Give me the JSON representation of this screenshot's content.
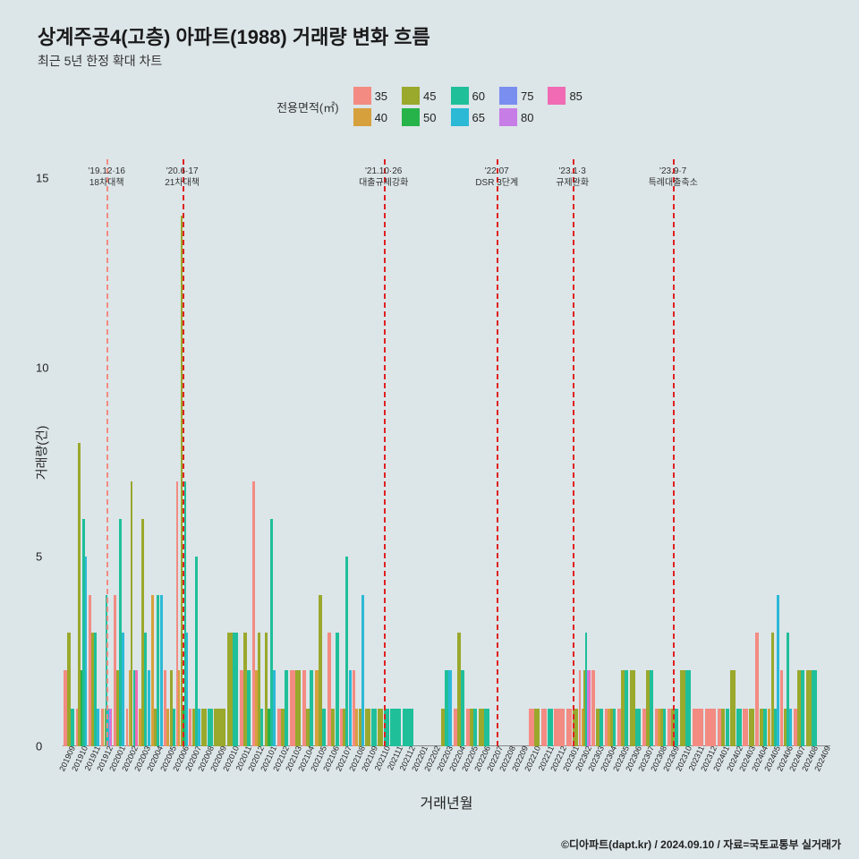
{
  "title": "상계주공4(고층) 아파트(1988) 거래량 변화 흐름",
  "subtitle": "최근 5년 한정 확대 차트",
  "legend_title": "전용면적(㎡)",
  "footer": "©디아파트(dapt.kr) / 2024.09.10 / 자료=국토교통부 실거래가",
  "y_label": "거래량(건)",
  "x_label": "거래년월",
  "y_ticks": [
    0,
    5,
    10,
    15
  ],
  "ylim": [
    0,
    15.5
  ],
  "background_color": "#dce5e8",
  "plot_bg": "#dce5e8",
  "series": [
    {
      "key": "35",
      "label": "35",
      "color": "#f38b82"
    },
    {
      "key": "40",
      "label": "40",
      "color": "#d6a03c"
    },
    {
      "key": "45",
      "label": "45",
      "color": "#9aa82c"
    },
    {
      "key": "50",
      "label": "50",
      "color": "#26b34a"
    },
    {
      "key": "60",
      "label": "60",
      "color": "#1fbf9a"
    },
    {
      "key": "65",
      "label": "65",
      "color": "#2bb9d6"
    },
    {
      "key": "75",
      "label": "75",
      "color": "#7a8ef0"
    },
    {
      "key": "80",
      "label": "80",
      "color": "#c77de6"
    },
    {
      "key": "85",
      "label": "85",
      "color": "#f06bb3"
    }
  ],
  "legend_layout_order": [
    "35",
    "45",
    "60",
    "75",
    "85",
    "40",
    "50",
    "65",
    "80"
  ],
  "months": [
    "201909",
    "201910",
    "201911",
    "201912",
    "202001",
    "202002",
    "202003",
    "202004",
    "202005",
    "202006",
    "202007",
    "202008",
    "202009",
    "202010",
    "202011",
    "202012",
    "202101",
    "202102",
    "202103",
    "202104",
    "202105",
    "202106",
    "202107",
    "202108",
    "202109",
    "202110",
    "202111",
    "202112",
    "202201",
    "202202",
    "202203",
    "202204",
    "202205",
    "202206",
    "202207",
    "202208",
    "202209",
    "202210",
    "202211",
    "202212",
    "202301",
    "202302",
    "202303",
    "202304",
    "202305",
    "202306",
    "202307",
    "202308",
    "202309",
    "202310",
    "202311",
    "202312",
    "202401",
    "202402",
    "202403",
    "202404",
    "202405",
    "202406",
    "202407",
    "202408",
    "202409"
  ],
  "events": [
    {
      "month": "201912",
      "label1": "'19.12·16",
      "label2": "18차대책",
      "color": "#f38b82"
    },
    {
      "month": "202006",
      "label1": "'20.6·17",
      "label2": "21차대책",
      "color": "#e02020"
    },
    {
      "month": "202110",
      "label1": "'21.10·26",
      "label2": "대출규제강화",
      "color": "#e02020"
    },
    {
      "month": "202207",
      "label1": "'22.07",
      "label2": "DSR 3단계",
      "color": "#e02020"
    },
    {
      "month": "202301",
      "label1": "'23.1·3",
      "label2": "규제완화",
      "color": "#e02020"
    },
    {
      "month": "202309",
      "label1": "'23.9·7",
      "label2": "특례대출축소",
      "color": "#e02020"
    }
  ],
  "data": {
    "201909": {
      "35": 2,
      "45": 3,
      "60": 1
    },
    "201910": {
      "35": 1,
      "45": 8,
      "50": 2,
      "60": 6,
      "65": 5
    },
    "201911": {
      "35": 4,
      "45": 3,
      "60": 3,
      "65": 1
    },
    "201912": {
      "35": 1,
      "40": 1,
      "45": 1,
      "60": 4,
      "65": 1,
      "80": 1,
      "85": 1
    },
    "202001": {
      "35": 4,
      "45": 2,
      "60": 6,
      "65": 3
    },
    "202002": {
      "35": 1,
      "40": 2,
      "45": 7,
      "60": 2,
      "85": 2
    },
    "202003": {
      "40": 1,
      "45": 6,
      "60": 3,
      "65": 2
    },
    "202004": {
      "40": 4,
      "45": 1,
      "60": 4,
      "65": 4
    },
    "202005": {
      "35": 2,
      "40": 1,
      "45": 2,
      "60": 1
    },
    "202006": {
      "35": 7,
      "40": 2,
      "45": 14,
      "50": 1,
      "60": 7,
      "65": 3
    },
    "202007": {
      "35": 1,
      "45": 1,
      "60": 5,
      "65": 1
    },
    "202008": {
      "45": 1,
      "60": 1
    },
    "202009": {
      "45": 1
    },
    "202010": {
      "45": 3,
      "60": 3
    },
    "202011": {
      "35": 2,
      "45": 3,
      "60": 2
    },
    "202012": {
      "35": 7,
      "40": 2,
      "45": 3,
      "60": 1
    },
    "202101": {
      "45": 3,
      "50": 1,
      "60": 6,
      "65": 2
    },
    "202102": {
      "35": 1,
      "45": 1,
      "60": 2
    },
    "202103": {
      "35": 2,
      "45": 2
    },
    "202104": {
      "35": 2,
      "45": 1,
      "60": 2
    },
    "202105": {
      "40": 2,
      "45": 4,
      "60": 1
    },
    "202106": {
      "35": 3,
      "45": 1,
      "60": 3
    },
    "202107": {
      "35": 1,
      "45": 1,
      "60": 5,
      "65": 2
    },
    "202108": {
      "35": 2,
      "40": 1,
      "45": 1,
      "65": 4
    },
    "202109": {
      "45": 1,
      "60": 1
    },
    "202110": {
      "45": 1,
      "60": 1
    },
    "202111": {
      "60": 1
    },
    "202112": {
      "60": 1
    },
    "202201": {},
    "202202": {},
    "202203": {
      "45": 1,
      "60": 2,
      "65": 2
    },
    "202204": {
      "35": 1,
      "45": 3,
      "60": 2
    },
    "202205": {
      "35": 1,
      "45": 1,
      "60": 1
    },
    "202206": {
      "45": 1,
      "60": 1
    },
    "202207": {},
    "202208": {},
    "202209": {},
    "202210": {
      "35": 1,
      "45": 1
    },
    "202211": {
      "35": 1,
      "60": 1
    },
    "202212": {
      "35": 1
    },
    "202301": {
      "35": 1,
      "45": 1
    },
    "202302": {
      "35": 2,
      "40": 1,
      "45": 2,
      "60": 3,
      "80": 2,
      "85": 2
    },
    "202303": {
      "35": 2,
      "45": 1,
      "60": 1
    },
    "202304": {
      "35": 1,
      "40": 1,
      "45": 1,
      "60": 1
    },
    "202305": {
      "35": 1,
      "45": 2,
      "60": 2
    },
    "202306": {
      "45": 2,
      "60": 1
    },
    "202307": {
      "35": 1,
      "45": 2,
      "60": 2
    },
    "202308": {
      "35": 1,
      "40": 1,
      "45": 1,
      "60": 1
    },
    "202309": {
      "35": 1,
      "45": 1,
      "60": 1
    },
    "202310": {
      "45": 2,
      "60": 2
    },
    "202311": {
      "35": 1
    },
    "202312": {
      "35": 1
    },
    "202401": {
      "35": 1,
      "45": 1,
      "60": 1
    },
    "202402": {
      "45": 2,
      "60": 1
    },
    "202403": {
      "35": 1,
      "45": 1
    },
    "202404": {
      "35": 3,
      "45": 1,
      "60": 1
    },
    "202405": {
      "40": 1,
      "45": 3,
      "60": 1,
      "65": 4
    },
    "202406": {
      "35": 2,
      "45": 1,
      "60": 3,
      "65": 1
    },
    "202407": {
      "35": 1,
      "45": 2,
      "60": 2
    },
    "202408": {
      "45": 2,
      "60": 2
    },
    "202409": {}
  }
}
